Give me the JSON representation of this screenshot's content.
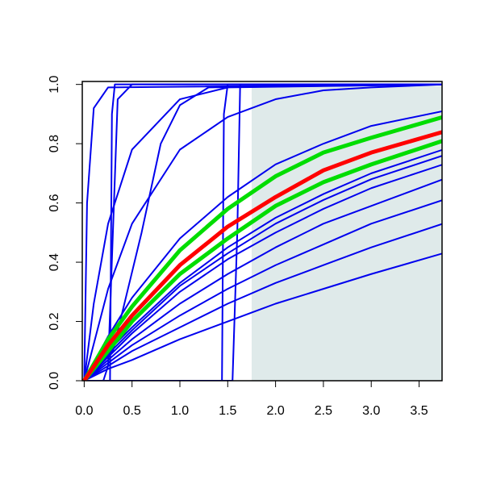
{
  "chart_data": {
    "type": "line",
    "xlim": [
      -0.02,
      3.74
    ],
    "ylim": [
      0,
      1.01
    ],
    "xticks": [
      {
        "value": 0,
        "label": "0.0"
      },
      {
        "value": 0.5,
        "label": "0.5"
      },
      {
        "value": 1,
        "label": "1.0"
      },
      {
        "value": 1.5,
        "label": "1.5"
      },
      {
        "value": 2,
        "label": "2.0"
      },
      {
        "value": 2.5,
        "label": "2.5"
      },
      {
        "value": 3,
        "label": "3.0"
      },
      {
        "value": 3.5,
        "label": "3.5"
      }
    ],
    "yticks": [
      {
        "value": 0,
        "label": "0.0"
      },
      {
        "value": 0.2,
        "label": "0.2"
      },
      {
        "value": 0.4,
        "label": "0.4"
      },
      {
        "value": 0.6,
        "label": "0.6"
      },
      {
        "value": 0.8,
        "label": "0.8"
      },
      {
        "value": 1,
        "label": "1.0"
      }
    ],
    "shaded_region": {
      "color": "#dfeaea",
      "xlim": [
        1.75,
        3.74
      ],
      "ylim": [
        0,
        0.995
      ]
    },
    "series": [
      {
        "color": "#0000ee",
        "x": [
          0,
          0.25,
          0.5,
          1,
          1.5,
          2,
          2.5,
          3,
          3.75
        ],
        "values": [
          0,
          0.04,
          0.07,
          0.14,
          0.2,
          0.26,
          0.31,
          0.36,
          0.43
        ]
      },
      {
        "color": "#0000ee",
        "x": [
          0,
          0.25,
          0.5,
          1,
          1.5,
          2,
          2.5,
          3,
          3.75
        ],
        "values": [
          0,
          0.05,
          0.1,
          0.18,
          0.26,
          0.33,
          0.39,
          0.45,
          0.53
        ]
      },
      {
        "color": "#0000ee",
        "x": [
          0,
          0.25,
          0.5,
          1,
          1.5,
          2,
          2.5,
          3,
          3.75
        ],
        "values": [
          0,
          0.06,
          0.12,
          0.22,
          0.31,
          0.39,
          0.46,
          0.53,
          0.61
        ]
      },
      {
        "color": "#0000ee",
        "x": [
          0,
          0.25,
          0.5,
          1,
          1.5,
          2,
          2.5,
          3,
          3.75
        ],
        "values": [
          0,
          0.07,
          0.14,
          0.26,
          0.36,
          0.45,
          0.53,
          0.59,
          0.68
        ]
      },
      {
        "color": "#0000ee",
        "x": [
          0,
          0.25,
          0.5,
          1,
          1.5,
          2,
          2.5,
          3,
          3.75
        ],
        "values": [
          0,
          0.08,
          0.16,
          0.3,
          0.41,
          0.5,
          0.58,
          0.65,
          0.73
        ]
      },
      {
        "color": "#0000ee",
        "x": [
          0,
          0.25,
          0.5,
          1,
          1.5,
          2,
          2.5,
          3,
          3.75
        ],
        "values": [
          0,
          0.09,
          0.17,
          0.32,
          0.43,
          0.53,
          0.61,
          0.68,
          0.76
        ]
      },
      {
        "color": "#0000ee",
        "x": [
          0,
          0.25,
          0.5,
          1,
          1.5,
          2,
          2.5,
          3,
          3.75
        ],
        "values": [
          0,
          0.1,
          0.18,
          0.33,
          0.45,
          0.55,
          0.63,
          0.7,
          0.78
        ]
      },
      {
        "color": "#0000ee",
        "x": [
          0,
          0.25,
          0.5,
          1,
          1.5,
          2,
          2.5,
          3,
          3.75
        ],
        "values": [
          0,
          0.15,
          0.28,
          0.48,
          0.62,
          0.73,
          0.8,
          0.86,
          0.91
        ]
      },
      {
        "color": "#0000ee",
        "x": [
          0,
          0.25,
          0.5,
          1,
          1.5,
          2,
          2.5,
          3,
          3.75
        ],
        "values": [
          0,
          0.31,
          0.53,
          0.78,
          0.89,
          0.95,
          0.98,
          0.99,
          1
        ]
      },
      {
        "color": "#0000ee",
        "x": [
          0,
          0.1,
          0.25,
          0.5,
          1,
          1.5,
          3.75
        ],
        "values": [
          0,
          0.26,
          0.53,
          0.78,
          0.95,
          0.99,
          1
        ]
      },
      {
        "color": "#0000ee",
        "x": [
          0,
          0.03,
          0.1,
          0.25,
          3.75
        ],
        "values": [
          0,
          0.6,
          0.92,
          0.99,
          1
        ]
      },
      {
        "color": "#0000ee",
        "x": [
          0,
          0.2,
          0.25,
          0.3,
          0.35,
          0.5,
          3.75
        ],
        "values": [
          0,
          0,
          0.05,
          0.5,
          0.95,
          1,
          1
        ]
      },
      {
        "color": "#0000ee",
        "x": [
          0,
          0.27,
          0.29,
          0.32,
          3.75
        ],
        "values": [
          0,
          0,
          0.9,
          1,
          1
        ]
      },
      {
        "color": "#0000ee",
        "x": [
          0,
          0.3,
          0.45,
          0.6,
          0.8,
          1,
          1.3,
          3.75
        ],
        "values": [
          0,
          0.1,
          0.3,
          0.5,
          0.8,
          0.93,
          0.99,
          1
        ]
      },
      {
        "color": "#0000ee",
        "x": [
          0,
          1.44,
          1.46,
          1.5,
          3.75
        ],
        "values": [
          0,
          0,
          0.9,
          1,
          1
        ]
      },
      {
        "color": "#0000ee",
        "x": [
          0,
          1.55,
          1.6,
          1.63,
          3.75
        ],
        "values": [
          0,
          0,
          0.5,
          1,
          1
        ]
      },
      {
        "color": "#00dd00",
        "x": [
          0,
          0.25,
          0.5,
          1,
          1.5,
          2,
          2.5,
          3,
          3.75
        ],
        "values": [
          0,
          0.14,
          0.25,
          0.44,
          0.58,
          0.69,
          0.77,
          0.82,
          0.89
        ]
      },
      {
        "color": "#00dd00",
        "x": [
          0,
          0.25,
          0.5,
          1,
          1.5,
          2,
          2.5,
          3,
          3.75
        ],
        "values": [
          0,
          0.1,
          0.2,
          0.36,
          0.48,
          0.59,
          0.67,
          0.73,
          0.81
        ]
      },
      {
        "color": "#ff0000",
        "x": [
          0,
          0.25,
          0.5,
          1,
          1.5,
          2,
          2.5,
          3,
          3.75
        ],
        "values": [
          0,
          0.12,
          0.22,
          0.39,
          0.52,
          0.62,
          0.71,
          0.77,
          0.84
        ]
      }
    ]
  }
}
